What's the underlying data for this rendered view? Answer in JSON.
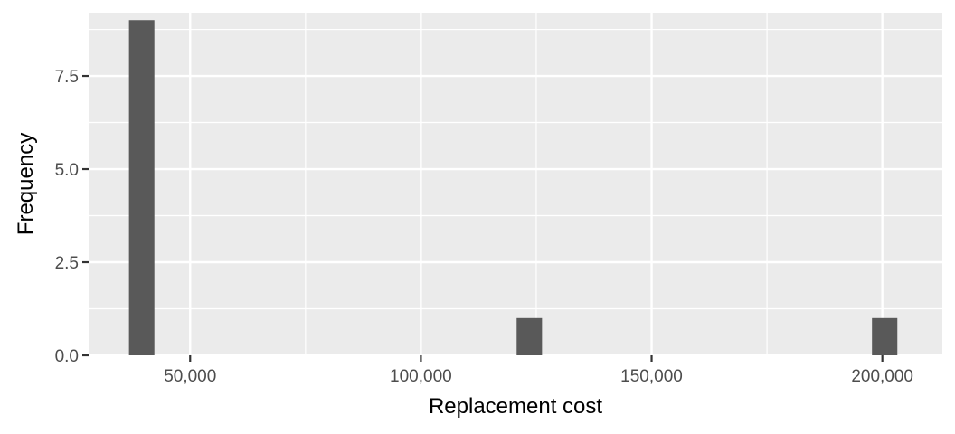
{
  "chart_data": {
    "type": "bar",
    "variant": "histogram",
    "xlabel": "Replacement cost",
    "ylabel": "Frequency",
    "xlim": [
      28000,
      213000
    ],
    "ylim": [
      0,
      9.2
    ],
    "bins": [
      {
        "x": 39500,
        "count": 9
      },
      {
        "x": 123500,
        "count": 1
      },
      {
        "x": 200500,
        "count": 1
      }
    ],
    "bin_width": 5500,
    "x_ticks": [
      {
        "value": 50000,
        "label": "50,000"
      },
      {
        "value": 100000,
        "label": "100,000"
      },
      {
        "value": 150000,
        "label": "150,000"
      },
      {
        "value": 200000,
        "label": "200,000"
      }
    ],
    "y_ticks": [
      {
        "value": 0,
        "label": "0.0"
      },
      {
        "value": 2.5,
        "label": "2.5"
      },
      {
        "value": 5,
        "label": "5.0"
      },
      {
        "value": 7.5,
        "label": "7.5"
      }
    ],
    "grid": true,
    "legend": "none",
    "colors": {
      "panel_background": "#ebebeb",
      "grid": "#ffffff",
      "bar_fill": "#595959",
      "tick_mark": "#333333"
    }
  }
}
